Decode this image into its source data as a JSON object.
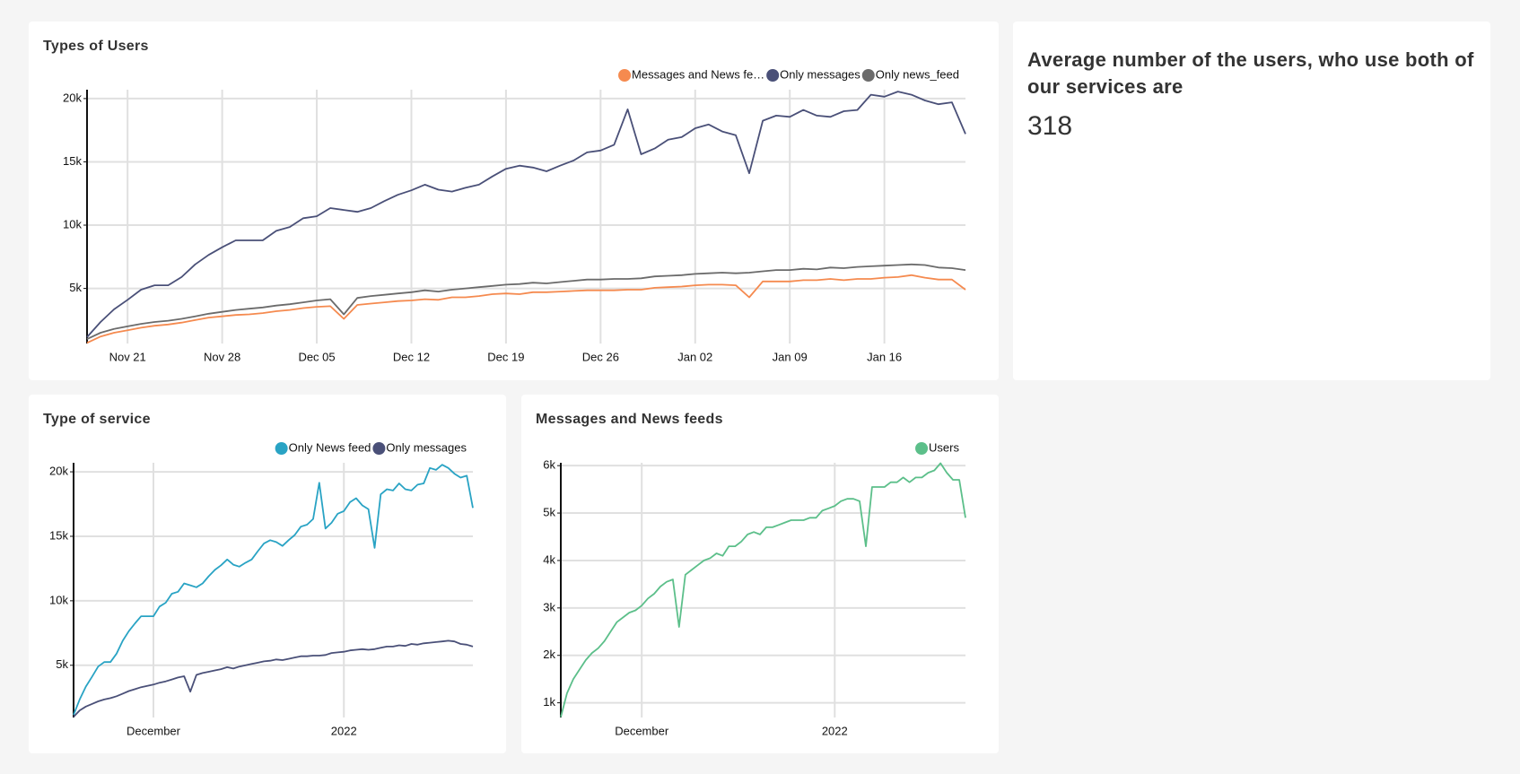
{
  "chart_data": [
    {
      "type": "line",
      "title": "Types of Users",
      "x": [
        "Nov 18",
        "Nov 19",
        "Nov 20",
        "Nov 21",
        "Nov 22",
        "Nov 23",
        "Nov 24",
        "Nov 25",
        "Nov 26",
        "Nov 27",
        "Nov 28",
        "Nov 29",
        "Nov 30",
        "Dec 01",
        "Dec 02",
        "Dec 03",
        "Dec 04",
        "Dec 05",
        "Dec 06",
        "Dec 07",
        "Dec 08",
        "Dec 09",
        "Dec 10",
        "Dec 11",
        "Dec 12",
        "Dec 13",
        "Dec 14",
        "Dec 15",
        "Dec 16",
        "Dec 17",
        "Dec 18",
        "Dec 19",
        "Dec 20",
        "Dec 21",
        "Dec 22",
        "Dec 23",
        "Dec 24",
        "Dec 25",
        "Dec 26",
        "Dec 27",
        "Dec 28",
        "Dec 29",
        "Dec 30",
        "Dec 31",
        "Jan 01",
        "Jan 02",
        "Jan 03",
        "Jan 04",
        "Jan 05",
        "Jan 06",
        "Jan 07",
        "Jan 08",
        "Jan 09",
        "Jan 10",
        "Jan 11",
        "Jan 12",
        "Jan 13",
        "Jan 14",
        "Jan 15",
        "Jan 16",
        "Jan 17",
        "Jan 18",
        "Jan 19",
        "Jan 20",
        "Jan 21",
        "Jan 22"
      ],
      "xticks": [
        "Nov 21",
        "Nov 28",
        "Dec 05",
        "Dec 12",
        "Dec 19",
        "Dec 26",
        "Jan 02",
        "Jan 09",
        "Jan 16"
      ],
      "ylim": [
        650,
        20700
      ],
      "yticks": [
        {
          "value": 5000,
          "label": "5k"
        },
        {
          "value": 10000,
          "label": "10k"
        },
        {
          "value": 15000,
          "label": "15k"
        },
        {
          "value": 20000,
          "label": "20k"
        }
      ],
      "grid": true,
      "legend": "top-right",
      "series": [
        {
          "name": "Messages and News fe…",
          "color": "#f58a4f",
          "values": [
            700,
            1200,
            1500,
            1700,
            1900,
            2050,
            2150,
            2300,
            2500,
            2700,
            2800,
            2900,
            2950,
            3050,
            3200,
            3300,
            3450,
            3550,
            3600,
            2600,
            3700,
            3800,
            3900,
            4000,
            4050,
            4150,
            4100,
            4300,
            4300,
            4400,
            4550,
            4600,
            4550,
            4700,
            4700,
            4750,
            4800,
            4850,
            4850,
            4850,
            4900,
            4900,
            5050,
            5100,
            5150,
            5250,
            5300,
            5300,
            5250,
            4300,
            5550,
            5550,
            5550,
            5650,
            5650,
            5750,
            5650,
            5750,
            5750,
            5850,
            5900,
            6050,
            5850,
            5700,
            5700,
            4900
          ]
        },
        {
          "name": "Only messages",
          "color": "#4a5078",
          "values": [
            1150,
            2350,
            3350,
            4100,
            4900,
            5250,
            5250,
            5900,
            6900,
            7650,
            8250,
            8800,
            8800,
            8800,
            9550,
            9850,
            10550,
            10700,
            11350,
            11200,
            11050,
            11350,
            11900,
            12400,
            12750,
            13200,
            12800,
            12650,
            12950,
            13200,
            13850,
            14450,
            14700,
            14550,
            14250,
            14700,
            15100,
            15750,
            15900,
            16350,
            19150,
            15600,
            16050,
            16750,
            16950,
            17650,
            17950,
            17400,
            17100,
            14100,
            18250,
            18650,
            18550,
            19100,
            18650,
            18550,
            19000,
            19100,
            20300,
            20150,
            20550,
            20300,
            19850,
            19550,
            19700,
            17200
          ]
        },
        {
          "name": "Only news_feed",
          "color": "#6b6b6b",
          "values": [
            1000,
            1500,
            1800,
            2000,
            2200,
            2350,
            2450,
            2600,
            2800,
            3000,
            3150,
            3300,
            3400,
            3500,
            3650,
            3750,
            3900,
            4050,
            4150,
            2950,
            4250,
            4400,
            4500,
            4600,
            4700,
            4850,
            4750,
            4900,
            5000,
            5100,
            5200,
            5300,
            5350,
            5450,
            5400,
            5500,
            5600,
            5700,
            5700,
            5750,
            5750,
            5800,
            5950,
            6000,
            6050,
            6150,
            6200,
            6250,
            6200,
            6250,
            6350,
            6450,
            6450,
            6550,
            6500,
            6650,
            6600,
            6700,
            6750,
            6800,
            6850,
            6900,
            6850,
            6650,
            6600,
            6450
          ]
        }
      ]
    },
    {
      "type": "line",
      "title": "Type of service",
      "x": [
        "Nov 18",
        "Nov 19",
        "Nov 20",
        "Nov 21",
        "Nov 22",
        "Nov 23",
        "Nov 24",
        "Nov 25",
        "Nov 26",
        "Nov 27",
        "Nov 28",
        "Nov 29",
        "Nov 30",
        "Dec 01",
        "Dec 02",
        "Dec 03",
        "Dec 04",
        "Dec 05",
        "Dec 06",
        "Dec 07",
        "Dec 08",
        "Dec 09",
        "Dec 10",
        "Dec 11",
        "Dec 12",
        "Dec 13",
        "Dec 14",
        "Dec 15",
        "Dec 16",
        "Dec 17",
        "Dec 18",
        "Dec 19",
        "Dec 20",
        "Dec 21",
        "Dec 22",
        "Dec 23",
        "Dec 24",
        "Dec 25",
        "Dec 26",
        "Dec 27",
        "Dec 28",
        "Dec 29",
        "Dec 30",
        "Dec 31",
        "Jan 01",
        "Jan 02",
        "Jan 03",
        "Jan 04",
        "Jan 05",
        "Jan 06",
        "Jan 07",
        "Jan 08",
        "Jan 09",
        "Jan 10",
        "Jan 11",
        "Jan 12",
        "Jan 13",
        "Jan 14",
        "Jan 15",
        "Jan 16",
        "Jan 17",
        "Jan 18",
        "Jan 19",
        "Jan 20",
        "Jan 21",
        "Jan 22"
      ],
      "xticks": [
        {
          "value": "Dec 01",
          "label": "December"
        },
        {
          "value": "Jan 01",
          "label": "2022"
        }
      ],
      "ylim": [
        950,
        20700
      ],
      "yticks": [
        {
          "value": 5000,
          "label": "5k"
        },
        {
          "value": 10000,
          "label": "10k"
        },
        {
          "value": 15000,
          "label": "15k"
        },
        {
          "value": 20000,
          "label": "20k"
        }
      ],
      "grid": true,
      "legend": "top-right",
      "series": [
        {
          "name": "Only News feed",
          "color": "#29a3c4",
          "values": [
            1150,
            2350,
            3350,
            4100,
            4900,
            5250,
            5250,
            5900,
            6900,
            7650,
            8250,
            8800,
            8800,
            8800,
            9550,
            9850,
            10550,
            10700,
            11350,
            11200,
            11050,
            11350,
            11900,
            12400,
            12750,
            13200,
            12800,
            12650,
            12950,
            13200,
            13850,
            14450,
            14700,
            14550,
            14250,
            14700,
            15100,
            15750,
            15900,
            16350,
            19150,
            15600,
            16050,
            16750,
            16950,
            17650,
            17950,
            17400,
            17100,
            14100,
            18250,
            18650,
            18550,
            19100,
            18650,
            18550,
            19000,
            19100,
            20300,
            20150,
            20550,
            20300,
            19850,
            19550,
            19700,
            17200
          ]
        },
        {
          "name": "Only messages",
          "color": "#4a5078",
          "values": [
            1000,
            1500,
            1800,
            2000,
            2200,
            2350,
            2450,
            2600,
            2800,
            3000,
            3150,
            3300,
            3400,
            3500,
            3650,
            3750,
            3900,
            4050,
            4150,
            2950,
            4250,
            4400,
            4500,
            4600,
            4700,
            4850,
            4750,
            4900,
            5000,
            5100,
            5200,
            5300,
            5350,
            5450,
            5400,
            5500,
            5600,
            5700,
            5700,
            5750,
            5750,
            5800,
            5950,
            6000,
            6050,
            6150,
            6200,
            6250,
            6200,
            6250,
            6350,
            6450,
            6450,
            6550,
            6500,
            6650,
            6600,
            6700,
            6750,
            6800,
            6850,
            6900,
            6850,
            6650,
            6600,
            6450
          ]
        }
      ]
    },
    {
      "type": "line",
      "title": "Messages and News feeds",
      "x": [
        "Nov 18",
        "Nov 19",
        "Nov 20",
        "Nov 21",
        "Nov 22",
        "Nov 23",
        "Nov 24",
        "Nov 25",
        "Nov 26",
        "Nov 27",
        "Nov 28",
        "Nov 29",
        "Nov 30",
        "Dec 01",
        "Dec 02",
        "Dec 03",
        "Dec 04",
        "Dec 05",
        "Dec 06",
        "Dec 07",
        "Dec 08",
        "Dec 09",
        "Dec 10",
        "Dec 11",
        "Dec 12",
        "Dec 13",
        "Dec 14",
        "Dec 15",
        "Dec 16",
        "Dec 17",
        "Dec 18",
        "Dec 19",
        "Dec 20",
        "Dec 21",
        "Dec 22",
        "Dec 23",
        "Dec 24",
        "Dec 25",
        "Dec 26",
        "Dec 27",
        "Dec 28",
        "Dec 29",
        "Dec 30",
        "Dec 31",
        "Jan 01",
        "Jan 02",
        "Jan 03",
        "Jan 04",
        "Jan 05",
        "Jan 06",
        "Jan 07",
        "Jan 08",
        "Jan 09",
        "Jan 10",
        "Jan 11",
        "Jan 12",
        "Jan 13",
        "Jan 14",
        "Jan 15",
        "Jan 16",
        "Jan 17",
        "Jan 18",
        "Jan 19",
        "Jan 20",
        "Jan 21",
        "Jan 22"
      ],
      "xticks": [
        {
          "value": "Dec 01",
          "label": "December"
        },
        {
          "value": "Jan 01",
          "label": "2022"
        }
      ],
      "ylim": [
        690,
        6060
      ],
      "yticks": [
        {
          "value": 1000,
          "label": "1k"
        },
        {
          "value": 2000,
          "label": "2k"
        },
        {
          "value": 3000,
          "label": "3k"
        },
        {
          "value": 4000,
          "label": "4k"
        },
        {
          "value": 5000,
          "label": "5k"
        },
        {
          "value": 6000,
          "label": "6k"
        }
      ],
      "grid": true,
      "legend": "top-right",
      "series": [
        {
          "name": "Users",
          "color": "#5cbf8a",
          "values": [
            700,
            1200,
            1500,
            1700,
            1900,
            2050,
            2150,
            2300,
            2500,
            2700,
            2800,
            2900,
            2950,
            3050,
            3200,
            3300,
            3450,
            3550,
            3600,
            2600,
            3700,
            3800,
            3900,
            4000,
            4050,
            4150,
            4100,
            4300,
            4300,
            4400,
            4550,
            4600,
            4550,
            4700,
            4700,
            4750,
            4800,
            4850,
            4850,
            4850,
            4900,
            4900,
            5050,
            5100,
            5150,
            5250,
            5300,
            5300,
            5250,
            4300,
            5550,
            5550,
            5550,
            5650,
            5650,
            5750,
            5650,
            5750,
            5750,
            5850,
            5900,
            6050,
            5850,
            5700,
            5700,
            4900
          ]
        }
      ]
    }
  ],
  "card": {
    "title": "Average number of the users, who use both of our services are",
    "value": 318
  }
}
